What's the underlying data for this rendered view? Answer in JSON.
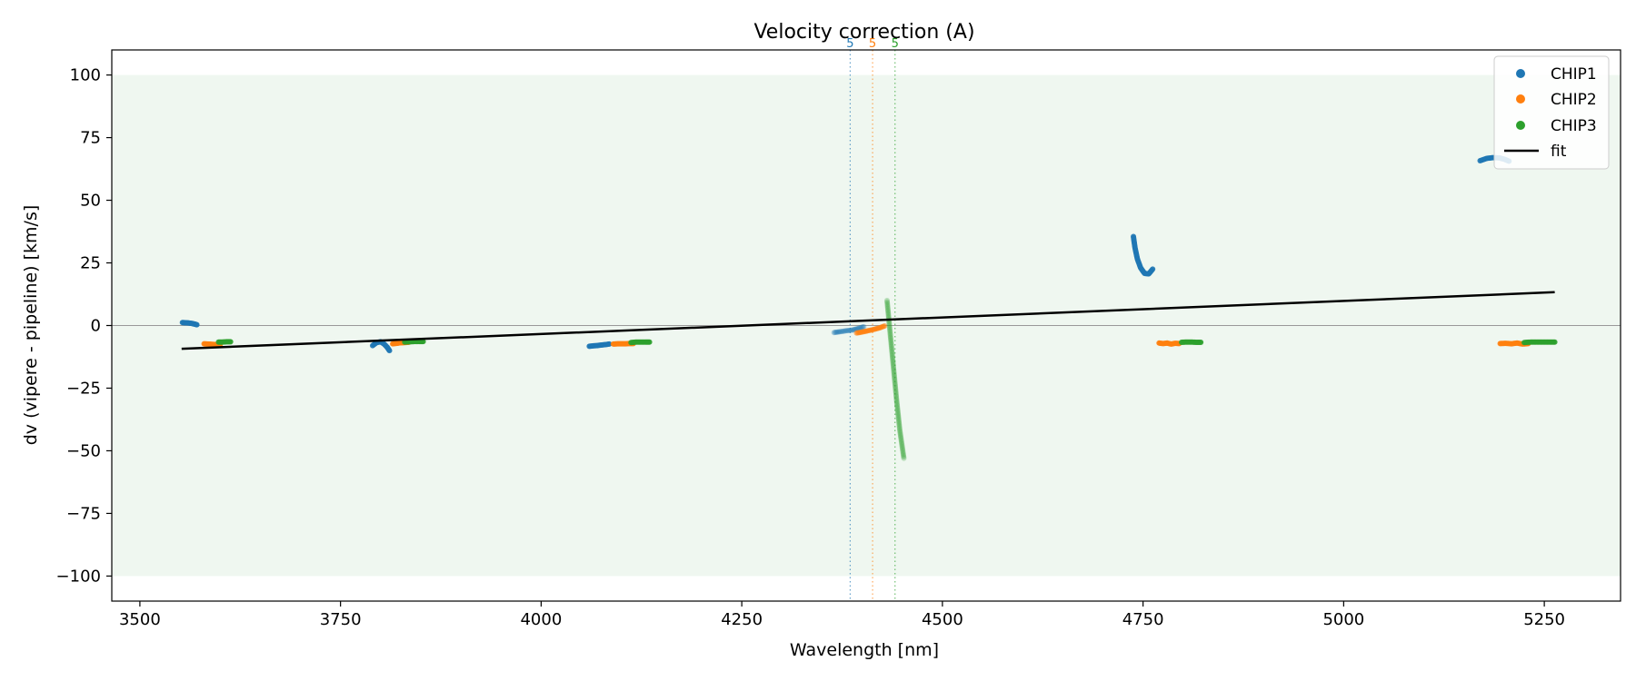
{
  "chart_data": {
    "type": "scatter",
    "title": "Velocity correction (A)",
    "xlabel": "Wavelength [nm]",
    "ylabel": "dv (vipere - pipeline) [km/s]",
    "xlim": [
      3465,
      5345
    ],
    "ylim": [
      -110,
      110
    ],
    "xticks": [
      3500,
      3750,
      4000,
      4250,
      4500,
      4750,
      5000,
      5250
    ],
    "xtick_labels": [
      "3500",
      "3750",
      "4000",
      "4250",
      "4500",
      "4750",
      "5000",
      "5250"
    ],
    "yticks": [
      -100,
      -75,
      -50,
      -25,
      0,
      25,
      50,
      75,
      100
    ],
    "ytick_labels": [
      "−100",
      "−75",
      "−50",
      "−25",
      "0",
      "25",
      "50",
      "75",
      "100"
    ],
    "band": {
      "y0": -100,
      "y1": 100,
      "color": "#e8f4ea"
    },
    "zero_line": {
      "y": 0,
      "color": "#999999"
    },
    "legend": {
      "position": "top-right",
      "entries": [
        "CHIP1",
        "CHIP2",
        "CHIP3",
        "fit"
      ]
    },
    "colors": {
      "CHIP1": "#1f77b4",
      "CHIP2": "#ff7f0e",
      "CHIP3": "#2ca02c",
      "fit": "#000000"
    },
    "vlines": [
      {
        "x": 4385,
        "label": "5",
        "color": "#1f77b4"
      },
      {
        "x": 4413,
        "label": "5",
        "color": "#ff7f0e"
      },
      {
        "x": 4441,
        "label": "5",
        "color": "#2ca02c"
      }
    ],
    "fit": {
      "name": "fit",
      "x": [
        3552,
        5263
      ],
      "y": [
        -9.3,
        13.3
      ]
    },
    "series": [
      {
        "name": "CHIP1",
        "segments": [
          {
            "opacity": 0.9,
            "x": [
              3553,
              3557,
              3561,
              3565,
              3568,
              3571
            ],
            "y": [
              1.2,
              1.1,
              1.0,
              0.8,
              0.6,
              0.3
            ]
          },
          {
            "opacity": 0.9,
            "x": [
              3790,
              3795,
              3800,
              3804,
              3808,
              3811
            ],
            "y": [
              -8.0,
              -6.8,
              -6.5,
              -7.3,
              -8.6,
              -10.0
            ]
          },
          {
            "opacity": 0.9,
            "x": [
              4060,
              4065,
              4070,
              4075,
              4080,
              4085
            ],
            "y": [
              -8.3,
              -8.1,
              -8.0,
              -7.8,
              -7.6,
              -7.4
            ]
          },
          {
            "opacity": 0.35,
            "x": [
              4365,
              4372,
              4380,
              4388,
              4395,
              4402
            ],
            "y": [
              -2.8,
              -2.5,
              -2.1,
              -1.8,
              -1.2,
              -0.5
            ]
          },
          {
            "opacity": 0.9,
            "x": [
              4738,
              4740,
              4743,
              4747,
              4752,
              4757,
              4762
            ],
            "y": [
              35.5,
              31.0,
              26.5,
              23.0,
              20.8,
              20.6,
              22.5
            ]
          },
          {
            "opacity": 0.9,
            "x": [
              5170,
              5178,
              5186,
              5194,
              5200,
              5206
            ],
            "y": [
              65.8,
              66.7,
              67.0,
              66.9,
              66.4,
              65.6
            ]
          }
        ]
      },
      {
        "name": "CHIP2",
        "segments": [
          {
            "opacity": 0.9,
            "x": [
              3580,
              3585,
              3590,
              3595,
              3600
            ],
            "y": [
              -7.3,
              -7.4,
              -7.5,
              -7.6,
              -7.7
            ]
          },
          {
            "opacity": 0.9,
            "x": [
              3815,
              3820,
              3825,
              3830,
              3835
            ],
            "y": [
              -7.3,
              -7.1,
              -6.9,
              -6.8,
              -6.7
            ]
          },
          {
            "opacity": 0.9,
            "x": [
              4090,
              4095,
              4100,
              4105,
              4110,
              4115
            ],
            "y": [
              -7.4,
              -7.3,
              -7.3,
              -7.3,
              -7.2,
              -7.2
            ]
          },
          {
            "opacity": 0.55,
            "x": [
              4393,
              4400,
              4407,
              4414,
              4421,
              4428
            ],
            "y": [
              -3.0,
              -2.6,
              -2.1,
              -1.6,
              -1.0,
              -0.2
            ]
          },
          {
            "opacity": 0.9,
            "x": [
              4770,
              4775,
              4780,
              4785,
              4790,
              4795
            ],
            "y": [
              -7.0,
              -7.2,
              -7.0,
              -7.4,
              -7.1,
              -7.2
            ]
          },
          {
            "opacity": 0.9,
            "x": [
              5195,
              5202,
              5209,
              5216,
              5223,
              5230
            ],
            "y": [
              -7.2,
              -7.1,
              -7.3,
              -7.0,
              -7.4,
              -7.2
            ]
          }
        ]
      },
      {
        "name": "CHIP3",
        "segments": [
          {
            "opacity": 0.9,
            "x": [
              3598,
              3603,
              3608,
              3613
            ],
            "y": [
              -6.6,
              -6.6,
              -6.5,
              -6.5
            ]
          },
          {
            "opacity": 0.9,
            "x": [
              3830,
              3836,
              3842,
              3848,
              3853
            ],
            "y": [
              -6.6,
              -6.5,
              -6.4,
              -6.4,
              -6.4
            ]
          },
          {
            "opacity": 0.9,
            "x": [
              4112,
              4118,
              4124,
              4130,
              4135
            ],
            "y": [
              -6.8,
              -6.6,
              -6.6,
              -6.6,
              -6.6
            ]
          },
          {
            "opacity": 0.25,
            "x": [
              4431,
              4434,
              4437,
              4440,
              4443,
              4447,
              4452
            ],
            "y": [
              10.0,
              0.0,
              -10.0,
              -20.0,
              -30.0,
              -42.0,
              -53.0
            ]
          },
          {
            "opacity": 0.9,
            "x": [
              4798,
              4804,
              4810,
              4816,
              4822
            ],
            "y": [
              -6.7,
              -6.6,
              -6.6,
              -6.7,
              -6.7
            ]
          },
          {
            "opacity": 0.9,
            "x": [
              5225,
              5233,
              5241,
              5249,
              5257,
              5263
            ],
            "y": [
              -6.8,
              -6.6,
              -6.6,
              -6.6,
              -6.6,
              -6.6
            ]
          }
        ]
      }
    ]
  }
}
